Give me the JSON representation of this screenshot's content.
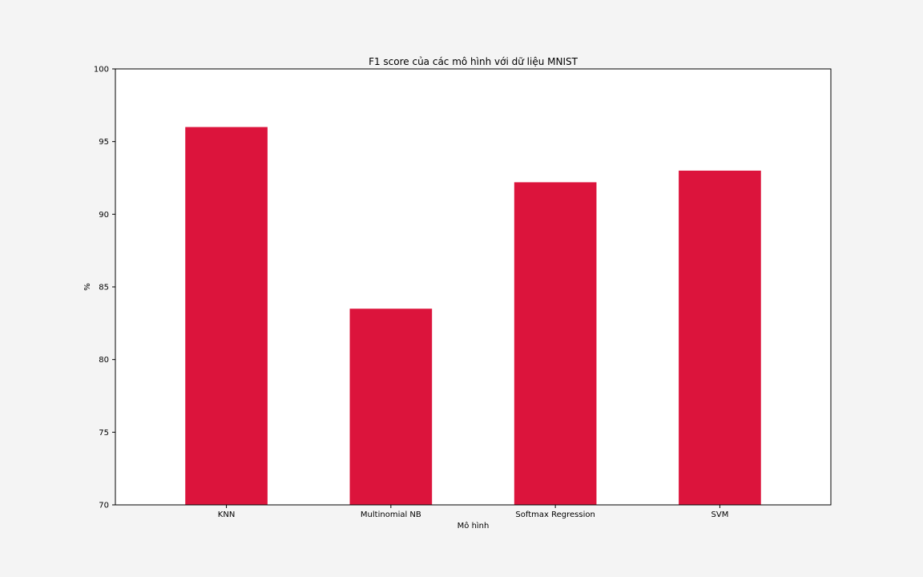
{
  "chart_data": {
    "type": "bar",
    "title": "F1 score của các mô hình với dữ liệu MNIST",
    "xlabel": "Mô hình",
    "ylabel": "%",
    "categories": [
      "KNN",
      "Multinomial NB",
      "Softmax Regression",
      "SVM"
    ],
    "values": [
      96.0,
      83.5,
      92.2,
      93.0
    ],
    "ylim": [
      70,
      100
    ],
    "yticks": [
      "70",
      "75",
      "80",
      "85",
      "90",
      "95",
      "100"
    ],
    "grid": false,
    "legend": "none",
    "bar_color": "#dc143c",
    "background_color": "#f4f4f4",
    "plot_background_color": "#ffffff"
  }
}
